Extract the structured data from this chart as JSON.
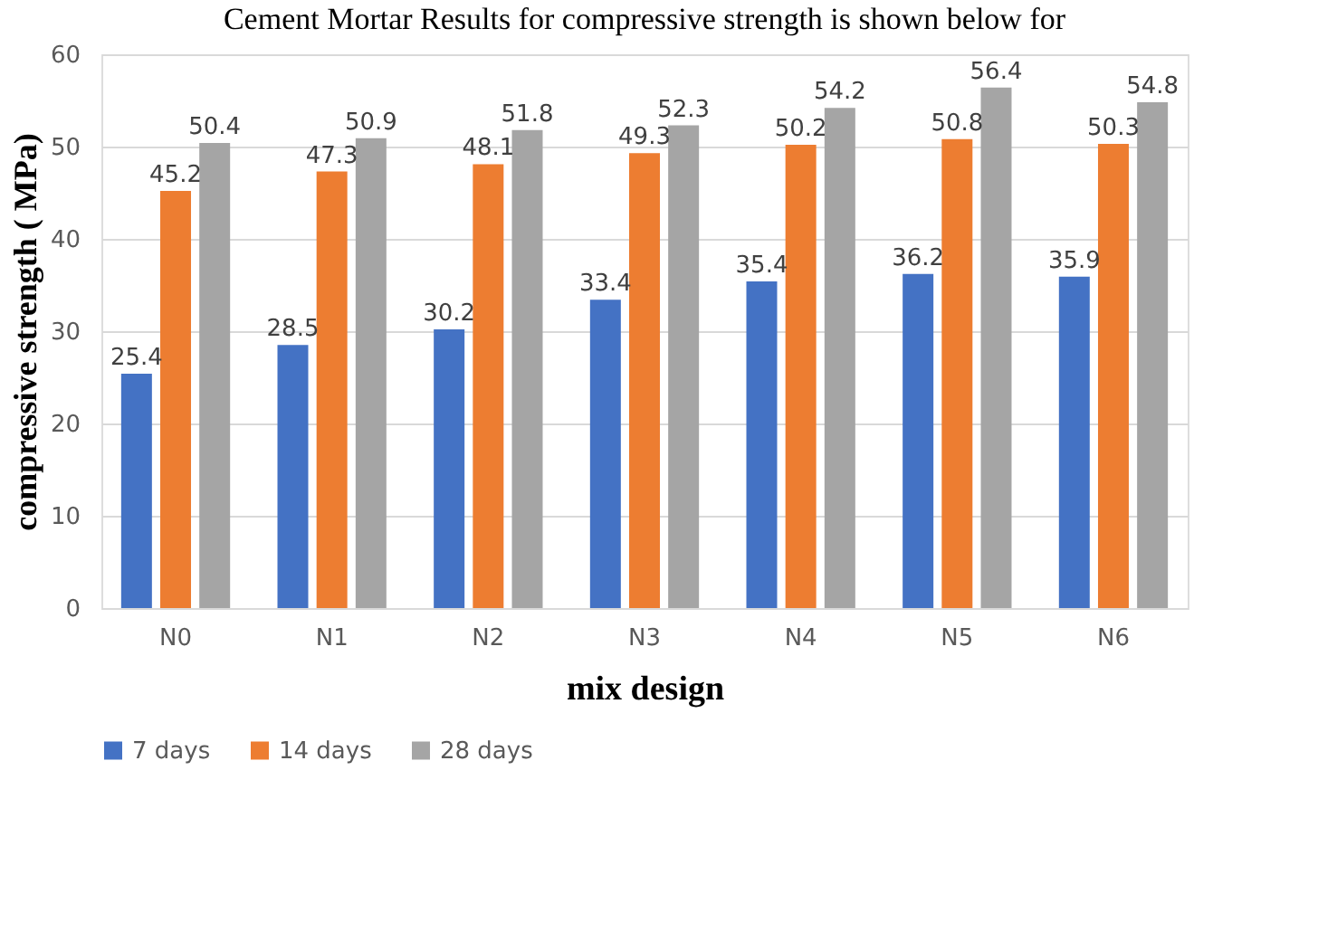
{
  "chart_data": {
    "type": "bar",
    "title": "Cement Mortar Results for compressive strength is shown below for",
    "xlabel": "mix design",
    "ylabel": "compressive strength ( MPa)",
    "categories": [
      "N0",
      "N1",
      "N2",
      "N3",
      "N4",
      "N5",
      "N6"
    ],
    "series": [
      {
        "name": "7 days",
        "color": "#4472c4",
        "values": [
          25.4,
          28.5,
          30.2,
          33.4,
          35.4,
          36.2,
          35.9
        ]
      },
      {
        "name": "14 days",
        "color": "#ed7d31",
        "values": [
          45.2,
          47.3,
          48.1,
          49.3,
          50.2,
          50.8,
          50.3
        ]
      },
      {
        "name": "28 days",
        "color": "#a5a5a5",
        "values": [
          50.4,
          50.9,
          51.8,
          52.3,
          54.2,
          56.4,
          54.8
        ]
      }
    ],
    "ylim": [
      0,
      60
    ],
    "yticks": [
      0,
      10,
      20,
      30,
      40,
      50,
      60
    ],
    "grid": "y",
    "legend": "bottom",
    "data_labels": true
  }
}
